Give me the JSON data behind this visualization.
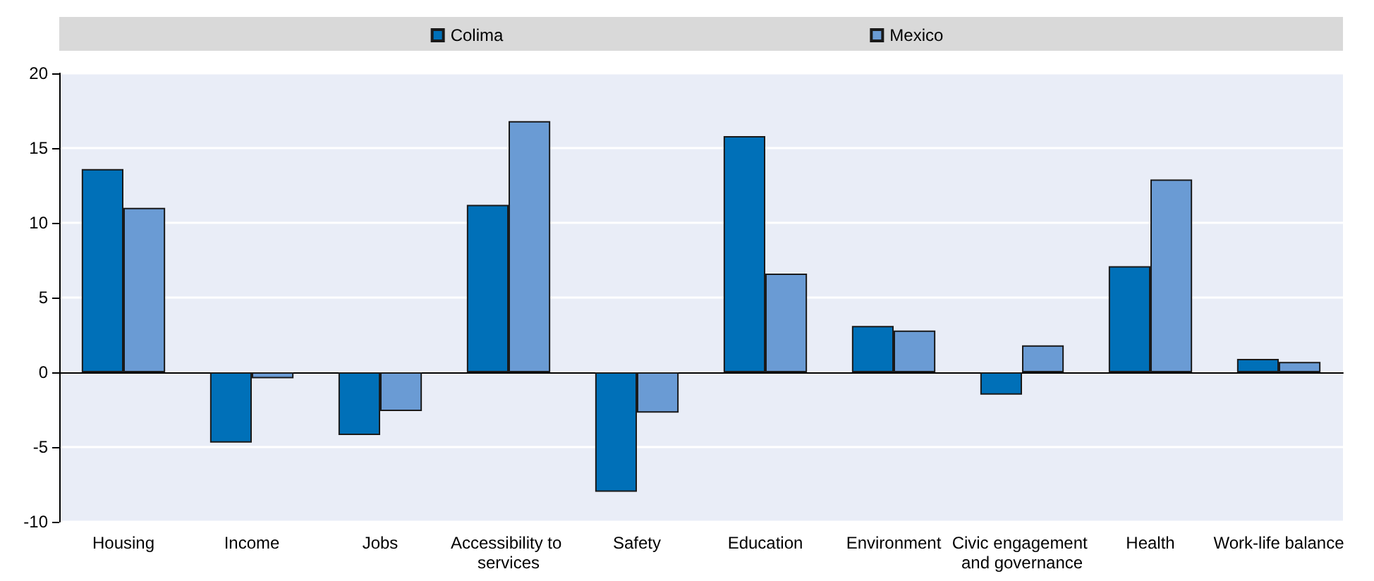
{
  "chart_data": {
    "type": "bar",
    "categories": [
      "Housing",
      "Income",
      "Jobs",
      "Accessibility to services",
      "Safety",
      "Education",
      "Environment",
      "Civic engagement and governance",
      "Health",
      "Work-life balance"
    ],
    "series": [
      {
        "name": "Colima",
        "color": "#0070b8",
        "values": [
          13.6,
          -4.7,
          -4.2,
          11.2,
          -8.0,
          15.8,
          3.1,
          -1.5,
          7.1,
          0.9
        ]
      },
      {
        "name": "Mexico",
        "color": "#6a9bd4",
        "values": [
          11.0,
          -0.4,
          -2.6,
          16.8,
          -2.7,
          6.6,
          2.8,
          1.8,
          12.9,
          0.7
        ]
      }
    ],
    "ylim": [
      -10,
      20
    ],
    "yticks": [
      -10,
      -5,
      0,
      5,
      10,
      15,
      20
    ],
    "grid": "y",
    "legend": "top"
  }
}
